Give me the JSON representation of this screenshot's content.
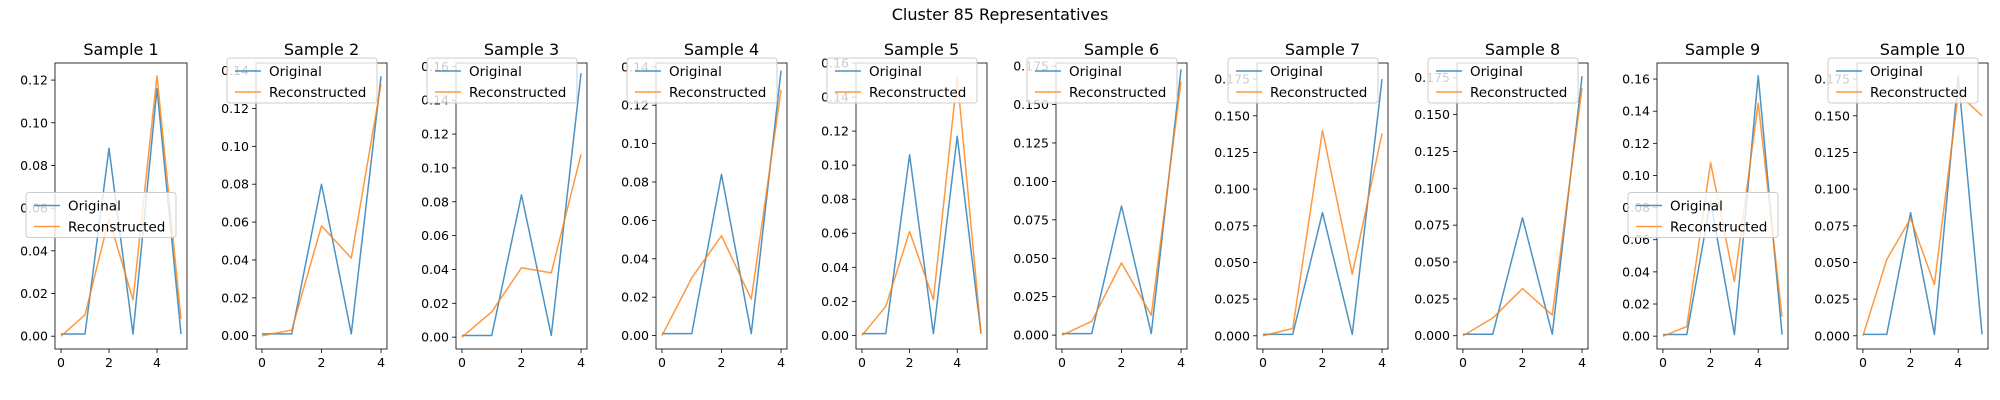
{
  "figure": {
    "title": "Cluster 85 Representatives"
  },
  "legend_labels": [
    "Original",
    "Reconstructed"
  ],
  "colors": {
    "original": "#1f77b4",
    "reconstructed": "#ff7f0e"
  },
  "chart_data": [
    {
      "type": "line",
      "title": "Sample 1",
      "x": [
        0,
        1,
        2,
        3,
        4,
        5
      ],
      "xticks": [
        "0",
        "2",
        "4"
      ],
      "ylim": [
        -0.006,
        0.128
      ],
      "yticks": [
        "0.00",
        "0.02",
        "0.04",
        "0.06",
        "0.08",
        "0.10",
        "0.12"
      ],
      "legend": "center-left",
      "series": [
        {
          "name": "Original",
          "values": [
            0.001,
            0.001,
            0.088,
            0.001,
            0.116,
            0.001
          ]
        },
        {
          "name": "Reconstructed",
          "values": [
            0.0,
            0.01,
            0.055,
            0.017,
            0.122,
            0.008
          ]
        }
      ]
    },
    {
      "type": "line",
      "title": "Sample 2",
      "x": [
        0,
        1,
        2,
        3,
        4
      ],
      "xticks": [
        "0",
        "2",
        "4"
      ],
      "ylim": [
        -0.007,
        0.144
      ],
      "yticks": [
        "0.00",
        "0.02",
        "0.04",
        "0.06",
        "0.08",
        "0.10",
        "0.12",
        "0.14"
      ],
      "legend": "upper-left",
      "series": [
        {
          "name": "Original",
          "values": [
            0.001,
            0.001,
            0.08,
            0.001,
            0.137
          ]
        },
        {
          "name": "Reconstructed",
          "values": [
            0.0,
            0.003,
            0.058,
            0.041,
            0.133
          ]
        }
      ]
    },
    {
      "type": "line",
      "title": "Sample 3",
      "x": [
        0,
        1,
        2,
        3,
        4
      ],
      "xticks": [
        "0",
        "2",
        "4"
      ],
      "ylim": [
        -0.007,
        0.162
      ],
      "yticks": [
        "0.00",
        "0.02",
        "0.04",
        "0.06",
        "0.08",
        "0.10",
        "0.12",
        "0.14",
        "0.16"
      ],
      "legend": "upper-left",
      "series": [
        {
          "name": "Original",
          "values": [
            0.001,
            0.001,
            0.084,
            0.001,
            0.156
          ]
        },
        {
          "name": "Reconstructed",
          "values": [
            0.0,
            0.015,
            0.041,
            0.038,
            0.108
          ]
        }
      ]
    },
    {
      "type": "line",
      "title": "Sample 4",
      "x": [
        0,
        1,
        2,
        3,
        4
      ],
      "xticks": [
        "0",
        "2",
        "4"
      ],
      "ylim": [
        -0.007,
        0.142
      ],
      "yticks": [
        "0.00",
        "0.02",
        "0.04",
        "0.06",
        "0.08",
        "0.10",
        "0.12",
        "0.14"
      ],
      "legend": "upper-left",
      "series": [
        {
          "name": "Original",
          "values": [
            0.001,
            0.001,
            0.084,
            0.001,
            0.138
          ]
        },
        {
          "name": "Reconstructed",
          "values": [
            0.0,
            0.03,
            0.052,
            0.019,
            0.128
          ]
        }
      ]
    },
    {
      "type": "line",
      "title": "Sample 5",
      "x": [
        0,
        1,
        2,
        3,
        4,
        5
      ],
      "xticks": [
        "0",
        "2",
        "4"
      ],
      "ylim": [
        -0.008,
        0.16
      ],
      "yticks": [
        "0.00",
        "0.02",
        "0.04",
        "0.06",
        "0.08",
        "0.10",
        "0.12",
        "0.14",
        "0.16"
      ],
      "legend": "upper-left",
      "series": [
        {
          "name": "Original",
          "values": [
            0.001,
            0.001,
            0.106,
            0.001,
            0.117,
            0.001
          ]
        },
        {
          "name": "Reconstructed",
          "values": [
            0.0,
            0.017,
            0.061,
            0.021,
            0.152,
            0.001
          ]
        }
      ]
    },
    {
      "type": "line",
      "title": "Sample 6",
      "x": [
        0,
        1,
        2,
        3,
        4
      ],
      "xticks": [
        "0",
        "2",
        "4"
      ],
      "ylim": [
        -0.009,
        0.177
      ],
      "yticks": [
        "0.000",
        "0.025",
        "0.050",
        "0.075",
        "0.100",
        "0.125",
        "0.150",
        "0.175"
      ],
      "legend": "upper-left",
      "series": [
        {
          "name": "Original",
          "values": [
            0.001,
            0.001,
            0.084,
            0.001,
            0.173
          ]
        },
        {
          "name": "Reconstructed",
          "values": [
            0.0,
            0.009,
            0.047,
            0.013,
            0.165
          ]
        }
      ]
    },
    {
      "type": "line",
      "title": "Sample 7",
      "x": [
        0,
        1,
        2,
        3,
        4
      ],
      "xticks": [
        "0",
        "2",
        "4"
      ],
      "ylim": [
        -0.009,
        0.186
      ],
      "yticks": [
        "0.000",
        "0.025",
        "0.050",
        "0.075",
        "0.100",
        "0.125",
        "0.150",
        "0.175"
      ],
      "legend": "upper-left",
      "series": [
        {
          "name": "Original",
          "values": [
            0.001,
            0.001,
            0.084,
            0.001,
            0.175
          ]
        },
        {
          "name": "Reconstructed",
          "values": [
            0.0,
            0.005,
            0.14,
            0.042,
            0.138
          ]
        }
      ]
    },
    {
      "type": "line",
      "title": "Sample 8",
      "x": [
        0,
        1,
        2,
        3,
        4
      ],
      "xticks": [
        "0",
        "2",
        "4"
      ],
      "ylim": [
        -0.009,
        0.185
      ],
      "yticks": [
        "0.000",
        "0.025",
        "0.050",
        "0.075",
        "0.100",
        "0.125",
        "0.150",
        "0.175"
      ],
      "legend": "upper-left",
      "series": [
        {
          "name": "Original",
          "values": [
            0.001,
            0.001,
            0.08,
            0.001,
            0.176
          ]
        },
        {
          "name": "Reconstructed",
          "values": [
            0.0,
            0.012,
            0.032,
            0.014,
            0.168
          ]
        }
      ]
    },
    {
      "type": "line",
      "title": "Sample 9",
      "x": [
        0,
        1,
        2,
        3,
        4,
        5
      ],
      "xticks": [
        "0",
        "2",
        "4"
      ],
      "ylim": [
        -0.008,
        0.17
      ],
      "yticks": [
        "0.00",
        "0.02",
        "0.04",
        "0.06",
        "0.08",
        "0.10",
        "0.12",
        "0.14",
        "0.16"
      ],
      "legend": "center-left",
      "series": [
        {
          "name": "Original",
          "values": [
            0.001,
            0.001,
            0.084,
            0.001,
            0.162,
            0.001
          ]
        },
        {
          "name": "Reconstructed",
          "values": [
            0.0,
            0.006,
            0.108,
            0.034,
            0.145,
            0.012
          ]
        }
      ]
    },
    {
      "type": "line",
      "title": "Sample 10",
      "x": [
        0,
        1,
        2,
        3,
        4,
        5
      ],
      "xticks": [
        "0",
        "2",
        "4"
      ],
      "ylim": [
        -0.009,
        0.186
      ],
      "yticks": [
        "0.000",
        "0.025",
        "0.050",
        "0.075",
        "0.100",
        "0.125",
        "0.150",
        "0.175"
      ],
      "legend": "upper-left",
      "series": [
        {
          "name": "Original",
          "values": [
            0.001,
            0.001,
            0.084,
            0.001,
            0.177,
            0.001
          ]
        },
        {
          "name": "Reconstructed",
          "values": [
            0.0,
            0.052,
            0.08,
            0.035,
            0.165,
            0.15
          ]
        }
      ]
    }
  ]
}
